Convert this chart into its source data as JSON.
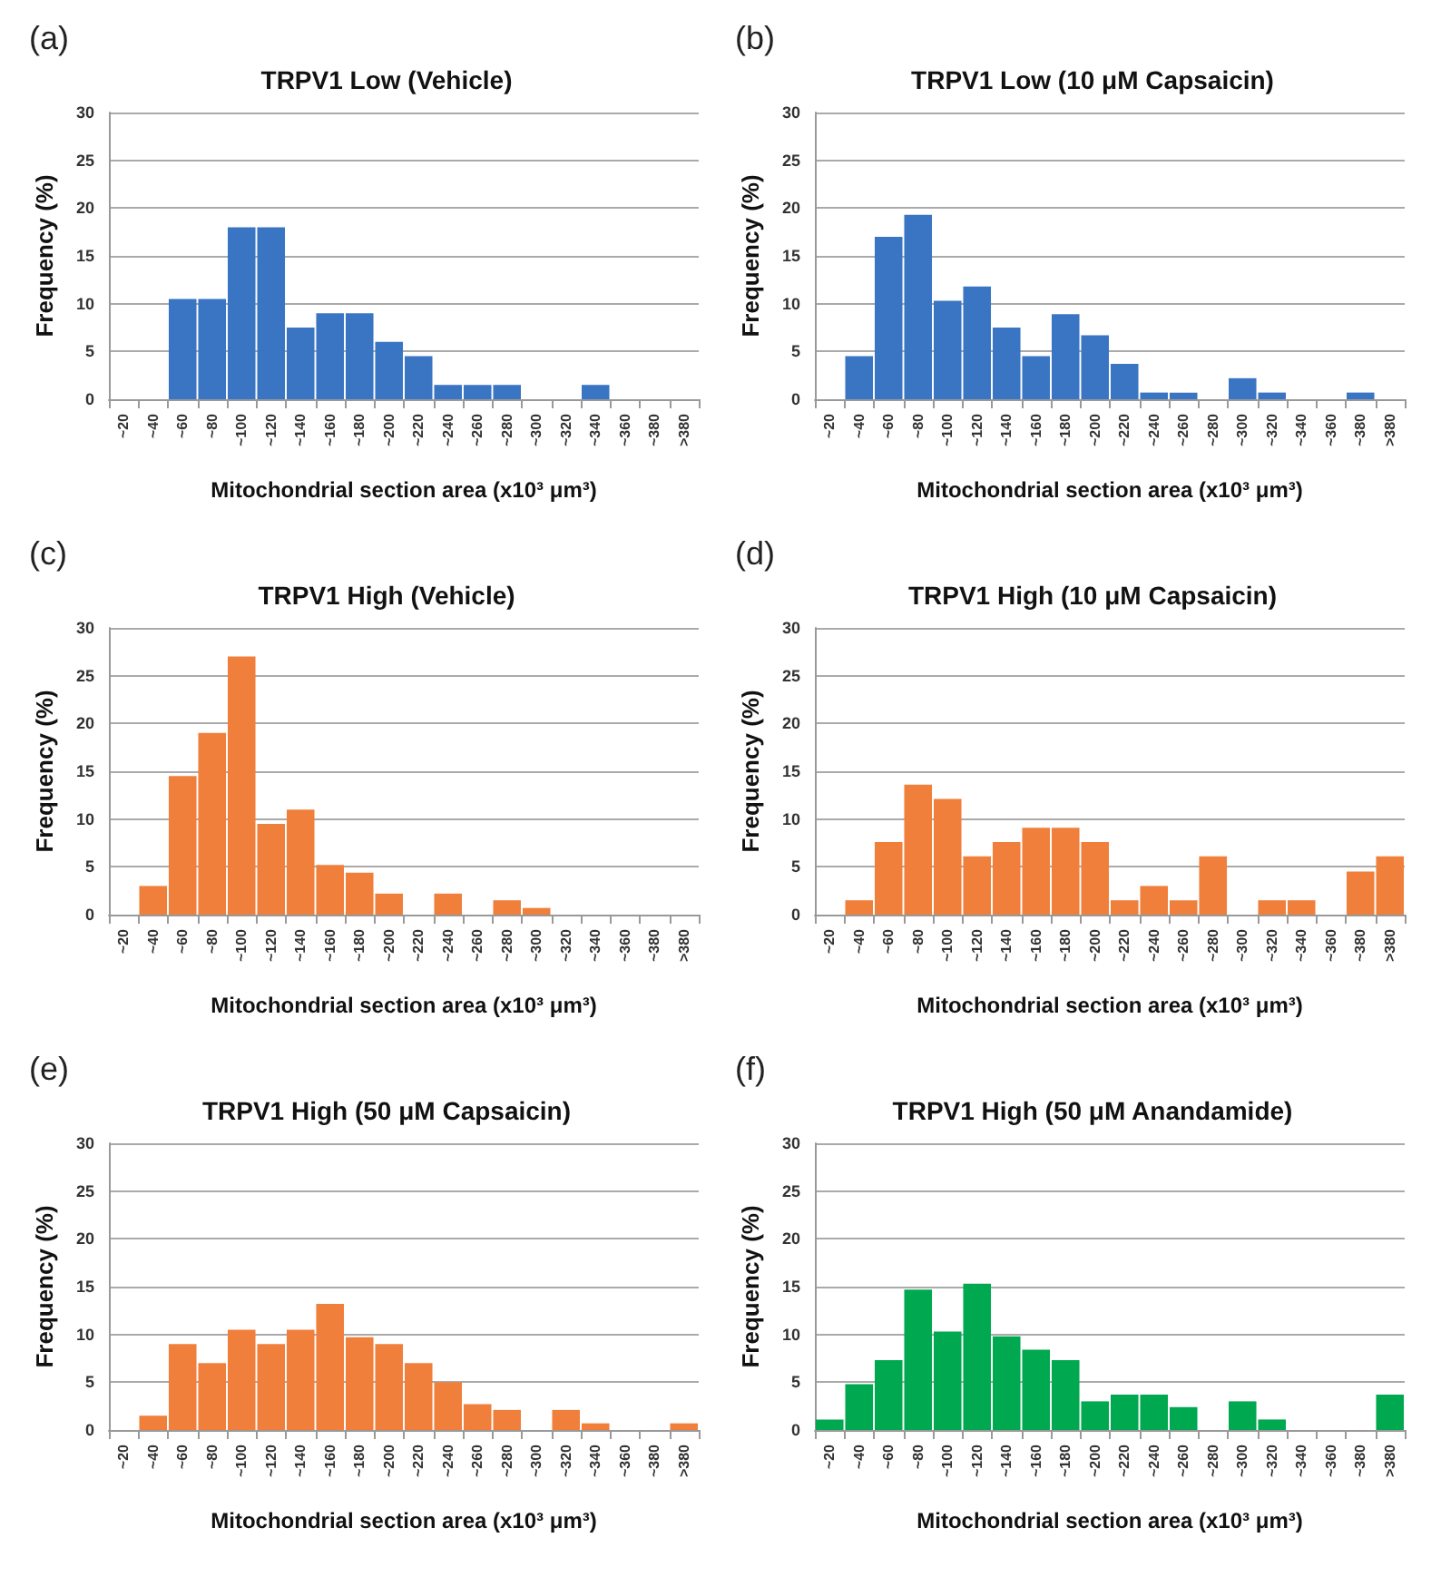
{
  "chart_data": [
    {
      "type": "bar",
      "title": "TRPV1 Low (Vehicle)",
      "xlabel": "Mitochondrial section area (x10³ μm³)",
      "ylabel": "Frequency (%)",
      "annotations": [
        "(a)"
      ],
      "categories": [
        "~20",
        "~40",
        "~60",
        "~80",
        "~100",
        "~120",
        "~140",
        "~160",
        "~180",
        "~200",
        "~220",
        "~240",
        "~260",
        "~280",
        "~300",
        "~320",
        "~340",
        "~360",
        "~380",
        ">380"
      ],
      "values": [
        0,
        0,
        10.5,
        10.5,
        18,
        18,
        7.5,
        9,
        9,
        6,
        4.5,
        1.5,
        1.5,
        1.5,
        0,
        0,
        1.5,
        0,
        0,
        0
      ],
      "color": "#3a75c4",
      "ylim": [
        0,
        30
      ],
      "yticks": [
        0,
        5,
        10,
        15,
        20,
        25,
        30
      ],
      "grid": "y"
    },
    {
      "type": "bar",
      "title": "TRPV1 Low (10 μM Capsaicin)",
      "xlabel": "Mitochondrial section area (x10³ μm³)",
      "ylabel": "Frequency (%)",
      "annotations": [
        "(b)"
      ],
      "categories": [
        "~20",
        "~40",
        "~60",
        "~80",
        "~100",
        "~120",
        "~140",
        "~160",
        "~180",
        "~200",
        "~220",
        "~240",
        "~260",
        "~280",
        "~300",
        "~320",
        "~340",
        "~360",
        "~380",
        ">380"
      ],
      "values": [
        0,
        4.5,
        17,
        19.3,
        10.3,
        11.8,
        7.5,
        4.5,
        8.9,
        6.7,
        3.7,
        0.7,
        0.7,
        0,
        2.2,
        0.7,
        0,
        0,
        0.7,
        0
      ],
      "color": "#3a75c4",
      "ylim": [
        0,
        30
      ],
      "yticks": [
        0,
        5,
        10,
        15,
        20,
        25,
        30
      ],
      "grid": "y"
    },
    {
      "type": "bar",
      "title": "TRPV1 High (Vehicle)",
      "xlabel": "Mitochondrial section area (x10³ μm³)",
      "ylabel": "Frequency (%)",
      "annotations": [
        "(c)"
      ],
      "categories": [
        "~20",
        "~40",
        "~60",
        "~80",
        "~100",
        "~120",
        "~140",
        "~160",
        "~180",
        "~200",
        "~220",
        "~240",
        "~260",
        "~280",
        "~300",
        "~320",
        "~340",
        "~360",
        "~380",
        ">380"
      ],
      "values": [
        0,
        3,
        14.5,
        19,
        27,
        9.5,
        11,
        5.2,
        4.4,
        2.2,
        0,
        2.2,
        0,
        1.5,
        0.7,
        0,
        0,
        0,
        0,
        0
      ],
      "color": "#f07f3c",
      "ylim": [
        0,
        30
      ],
      "yticks": [
        0,
        5,
        10,
        15,
        20,
        25,
        30
      ],
      "grid": "y"
    },
    {
      "type": "bar",
      "title": "TRPV1 High (10 μM Capsaicin)",
      "xlabel": "Mitochondrial section area (x10³ μm³)",
      "ylabel": "Frequency (%)",
      "annotations": [
        "(d)"
      ],
      "categories": [
        "~20",
        "~40",
        "~60",
        "~80",
        "~100",
        "~120",
        "~140",
        "~160",
        "~180",
        "~200",
        "~220",
        "~240",
        "~260",
        "~280",
        "~300",
        "~320",
        "~340",
        "~360",
        "~380",
        ">380"
      ],
      "values": [
        0,
        1.5,
        7.6,
        13.6,
        12.1,
        6.1,
        7.6,
        9.1,
        9.1,
        7.6,
        1.5,
        3,
        1.5,
        6.1,
        0,
        1.5,
        1.5,
        0,
        4.5,
        6.1
      ],
      "color": "#f07f3c",
      "ylim": [
        0,
        30
      ],
      "yticks": [
        0,
        5,
        10,
        15,
        20,
        25,
        30
      ],
      "grid": "y"
    },
    {
      "type": "bar",
      "title": "TRPV1 High (50 μM Capsaicin)",
      "xlabel": "Mitochondrial section area (x10³ μm³)",
      "ylabel": "Frequency (%)",
      "annotations": [
        "(e)"
      ],
      "categories": [
        "~20",
        "~40",
        "~60",
        "~80",
        "~100",
        "~120",
        "~140",
        "~160",
        "~180",
        "~200",
        "~220",
        "~240",
        "~260",
        "~280",
        "~300",
        "~320",
        "~340",
        "~360",
        "~380",
        ">380"
      ],
      "values": [
        0,
        1.5,
        9,
        7,
        10.5,
        9,
        10.5,
        13.2,
        9.7,
        9,
        7,
        5,
        2.7,
        2.1,
        0,
        2.1,
        0.7,
        0,
        0,
        0.7
      ],
      "color": "#f07f3c",
      "ylim": [
        0,
        30
      ],
      "yticks": [
        0,
        5,
        10,
        15,
        20,
        25,
        30
      ],
      "grid": "y"
    },
    {
      "type": "bar",
      "title": "TRPV1 High (50 μM Anandamide)",
      "xlabel": "Mitochondrial section area (x10³ μm³)",
      "ylabel": "Frequency (%)",
      "annotations": [
        "(f)"
      ],
      "categories": [
        "~20",
        "~40",
        "~60",
        "~80",
        "~100",
        "~120",
        "~140",
        "~160",
        "~180",
        "~200",
        "~220",
        "~240",
        "~260",
        "~280",
        "~300",
        "~320",
        "~340",
        "~360",
        "~380",
        ">380"
      ],
      "values": [
        1.1,
        4.8,
        7.3,
        14.7,
        10.3,
        15.3,
        9.8,
        8.4,
        7.3,
        3,
        3.7,
        3.7,
        2.4,
        0,
        3,
        1.1,
        0,
        0,
        0,
        3.7
      ],
      "color": "#00a850",
      "ylim": [
        0,
        30
      ],
      "yticks": [
        0,
        5,
        10,
        15,
        20,
        25,
        30
      ],
      "grid": "y"
    }
  ]
}
